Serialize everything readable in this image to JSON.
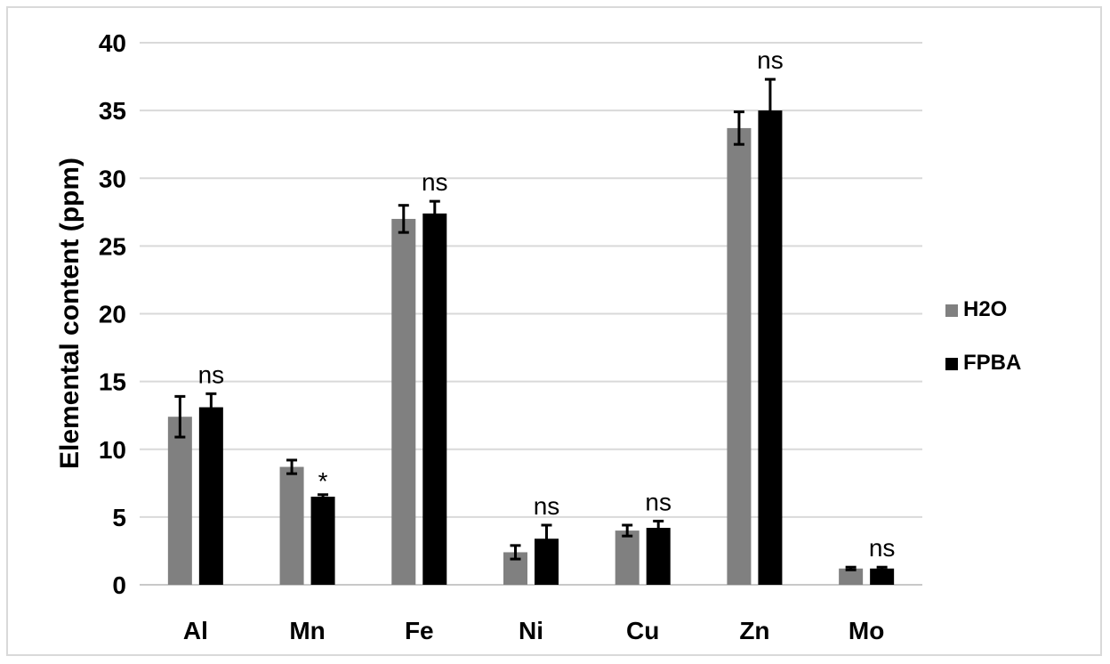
{
  "chart_data": {
    "type": "bar",
    "title": "",
    "xlabel": "",
    "ylabel": "Elemental content (ppm)",
    "ylim": [
      0,
      40
    ],
    "yticks": [
      0,
      5,
      10,
      15,
      20,
      25,
      30,
      35,
      40
    ],
    "grid": true,
    "legend_position": "right",
    "categories": [
      "Al",
      "Mn",
      "Fe",
      "Ni",
      "Cu",
      "Zn",
      "Mo"
    ],
    "series": [
      {
        "name": "H2O",
        "color": "#808080",
        "values": [
          12.4,
          8.7,
          27.0,
          2.4,
          4.0,
          33.7,
          1.2
        ],
        "errors": [
          1.5,
          0.5,
          1.0,
          0.5,
          0.4,
          1.2,
          0.1
        ]
      },
      {
        "name": "FPBA",
        "color": "#000000",
        "values": [
          13.1,
          6.5,
          27.4,
          3.4,
          4.2,
          35.0,
          1.2
        ],
        "errors": [
          1.0,
          0.15,
          0.9,
          1.0,
          0.5,
          2.3,
          0.1
        ]
      }
    ],
    "annotations": [
      "ns",
      "*",
      "ns",
      "ns",
      "ns",
      "ns",
      "ns"
    ]
  }
}
